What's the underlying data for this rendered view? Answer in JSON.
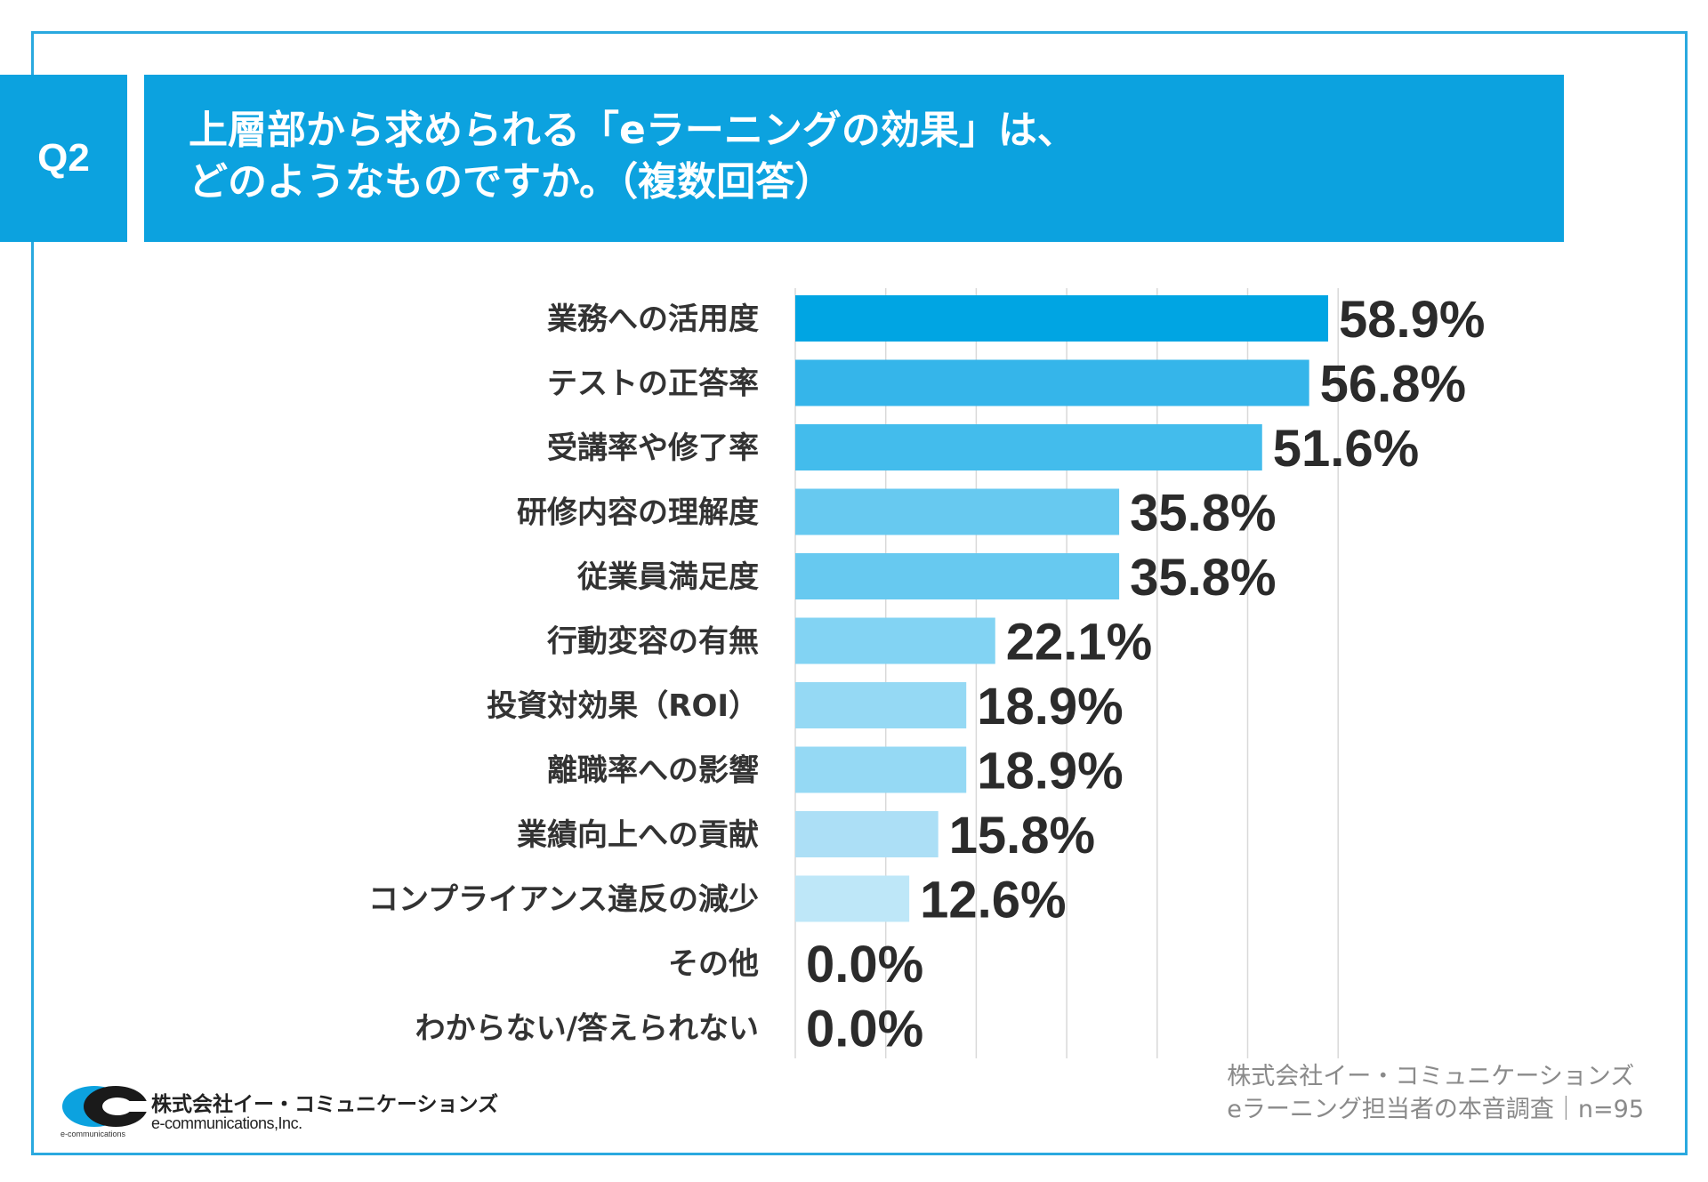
{
  "question": {
    "badge": "Q2",
    "title_line1": "上層部から求められる「eラーニングの効果」は、",
    "title_line2": "どのようなものですか。（複数回答）"
  },
  "chart_data": {
    "type": "bar",
    "orientation": "horizontal",
    "categories": [
      "業務への活用度",
      "テストの正答率",
      "受講率や修了率",
      "研修内容の理解度",
      "従業員満足度",
      "行動変容の有無",
      "投資対効果（ROI）",
      "離職率への影響",
      "業績向上への貢献",
      "コンプライアンス違反の減少",
      "その他",
      "わからない/答えられない"
    ],
    "values": [
      58.9,
      56.8,
      51.6,
      35.8,
      35.8,
      22.1,
      18.9,
      18.9,
      15.8,
      12.6,
      0.0,
      0.0
    ],
    "value_labels": [
      "58.9%",
      "56.8%",
      "51.6%",
      "35.8%",
      "35.8%",
      "22.1%",
      "18.9%",
      "18.9%",
      "15.8%",
      "12.6%",
      "0.0%",
      "0.0%"
    ],
    "xlim": [
      0,
      60
    ],
    "gridlines": [
      10,
      20,
      30,
      40,
      50,
      60
    ],
    "bar_colors": [
      "#00a5e3",
      "#35b5ea",
      "#43bcec",
      "#67c9f0",
      "#67c9f0",
      "#82d3f3",
      "#95d9f4",
      "#95d9f4",
      "#acdff6",
      "#bee7f8",
      "#d6f0fb",
      "#d6f0fb"
    ],
    "grid_color": "#d9d9d9"
  },
  "footer": {
    "company_jp": "株式会社イー・コミュニケーションズ",
    "company_en": "e-communications,Inc.",
    "logo_small": "e-communications",
    "logo_colors": [
      "#0ca2df",
      "#1a1a1a"
    ],
    "source_line1": "株式会社イー・コミュニケーションズ",
    "source_line2": "eラーニング担当者の本音調査｜n=95"
  }
}
